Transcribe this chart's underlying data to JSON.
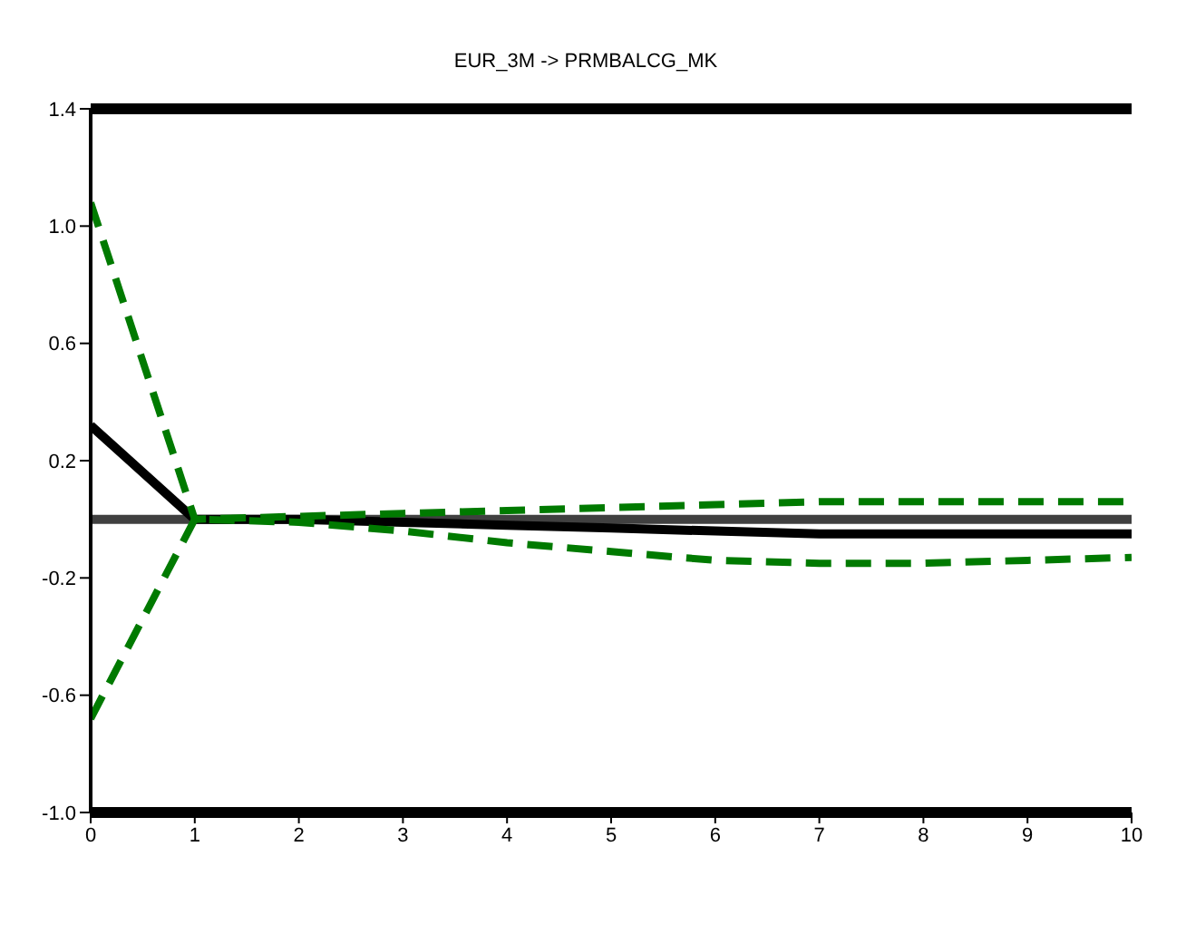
{
  "chart_data": {
    "type": "line",
    "title": "EUR_3M -> PRMBALCG_MK",
    "x": [
      0,
      1,
      2,
      3,
      4,
      5,
      6,
      7,
      8,
      9,
      10
    ],
    "series": [
      {
        "color": "#000000",
        "values": [
          0.32,
          0,
          0,
          -0.01,
          -0.02,
          -0.03,
          -0.04,
          -0.05,
          -0.05,
          -0.05,
          -0.05
        ],
        "line_style": "solid"
      },
      {
        "color": "#007a00",
        "values": [
          1.08,
          0,
          0.01,
          0.02,
          0.03,
          0.04,
          0.05,
          0.06,
          0.06,
          0.06,
          0.06
        ],
        "line_style": "dashed"
      },
      {
        "color": "#007a00",
        "values": [
          -0.68,
          0,
          -0.01,
          -0.04,
          -0.08,
          -0.11,
          -0.14,
          -0.15,
          -0.15,
          -0.14,
          -0.13
        ],
        "line_style": "dashed"
      }
    ],
    "xlim": [
      0,
      10
    ],
    "xticks": [
      0,
      1,
      2,
      3,
      4,
      5,
      6,
      7,
      8,
      9,
      10
    ],
    "ylim": [
      -1.0,
      1.4
    ],
    "yticks": [
      {
        "value": -1.0,
        "label": "-1.0"
      },
      -0.6,
      -0.2,
      0.2,
      0.6,
      {
        "value": 1.0,
        "label": "1.0"
      },
      1.4
    ],
    "ref_lines": [
      {
        "axis": "y",
        "value": 0,
        "color": "#404040"
      }
    ],
    "grid": false,
    "legend": false,
    "marker": "none"
  }
}
